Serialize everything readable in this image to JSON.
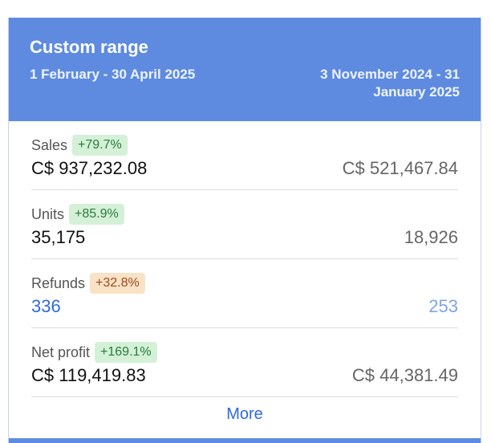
{
  "header": {
    "title": "Custom range",
    "current_period": "1 February - 30 April 2025",
    "compare_period": "3 November 2024 - 31 January 2025"
  },
  "metrics": [
    {
      "label": "Sales",
      "change": "+79.7%",
      "current": "C$ 937,232.08",
      "compare": "C$ 521,467.84"
    },
    {
      "label": "Units",
      "change": "+85.9%",
      "current": "35,175",
      "compare": "18,926"
    },
    {
      "label": "Refunds",
      "change": "+32.8%",
      "current": "336",
      "compare": "253"
    },
    {
      "label": "Net profit",
      "change": "+169.1%",
      "current": "C$ 119,419.83",
      "compare": "C$ 44,381.49"
    }
  ],
  "more_label": "More",
  "colors": {
    "header_bg": "#5e8be0",
    "positive_badge_bg": "#d4f1d8",
    "warning_badge_bg": "#f9e2c6",
    "link": "#2f6ad8"
  }
}
